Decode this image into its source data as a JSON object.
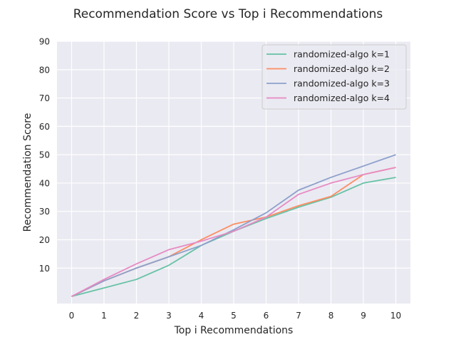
{
  "chart_data": {
    "type": "line",
    "title": "Recommendation Score vs Top i Recommendations",
    "xlabel": "Top i Recommendations",
    "ylabel": "Recommendation Score",
    "x": [
      0,
      1,
      2,
      3,
      4,
      5,
      6,
      7,
      8,
      9,
      10
    ],
    "xticks": [
      "0",
      "1",
      "2",
      "3",
      "4",
      "5",
      "6",
      "7",
      "8",
      "9",
      "10"
    ],
    "yticks": [
      "10",
      "20",
      "30",
      "40",
      "50",
      "60",
      "70",
      "80",
      "90"
    ],
    "ytick_values": [
      10,
      20,
      30,
      40,
      50,
      60,
      70,
      80,
      90
    ],
    "xlim": [
      -0.45,
      10.45
    ],
    "ylim": [
      -2.5,
      90
    ],
    "grid": true,
    "legend_position": "top-right",
    "background": "#eaeaf2",
    "series": [
      {
        "name": "randomized-algo k=1",
        "color": "#66c2a5",
        "values": [
          0,
          3,
          6,
          11,
          18,
          23,
          27.5,
          31.5,
          35,
          40,
          42
        ]
      },
      {
        "name": "randomized-algo k=2",
        "color": "#fc8d62",
        "values": [
          0,
          5.5,
          10,
          14,
          20,
          25.5,
          28,
          32,
          35.3,
          43,
          45.5
        ]
      },
      {
        "name": "randomized-algo k=3",
        "color": "#8da0cb",
        "values": [
          0,
          5.5,
          10,
          14,
          18,
          23.5,
          29.5,
          37.5,
          42,
          46,
          50
        ]
      },
      {
        "name": "randomized-algo k=4",
        "color": "#e78ac3",
        "values": [
          0,
          6,
          11.5,
          16.5,
          19.5,
          23,
          28,
          36,
          40,
          43,
          45.5
        ]
      }
    ]
  }
}
